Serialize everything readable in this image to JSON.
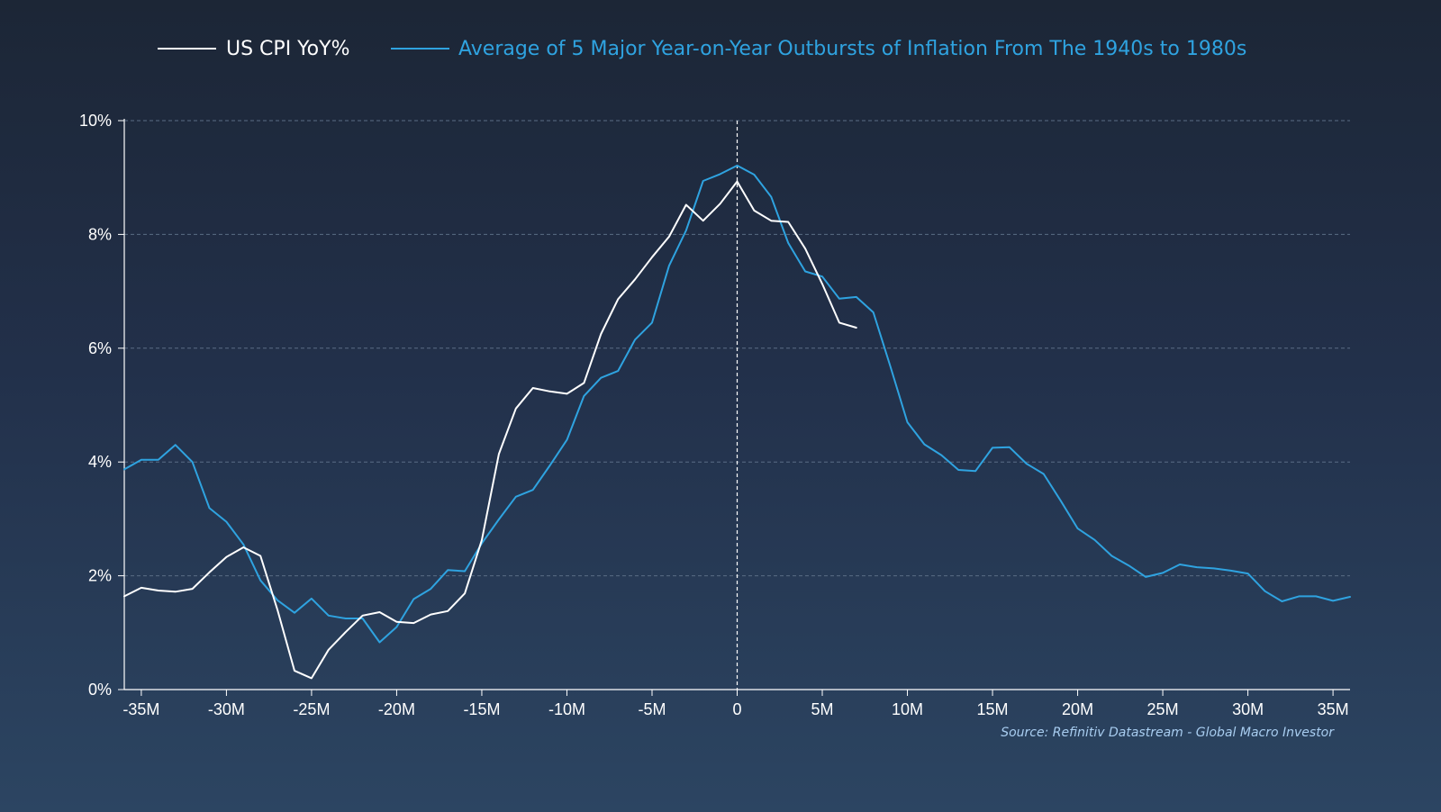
{
  "chart_data": {
    "type": "line",
    "title": "",
    "xlabel": "",
    "ylabel": "",
    "xlim": [
      -36,
      36
    ],
    "ylim": [
      0,
      10
    ],
    "x_ticks": [
      -35,
      -30,
      -25,
      -20,
      -15,
      -10,
      -5,
      0,
      5,
      10,
      15,
      20,
      25,
      30,
      35
    ],
    "x_tick_labels": [
      "-35M",
      "-30M",
      "-25M",
      "-20M",
      "-15M",
      "-10M",
      "-5M",
      "0",
      "5M",
      "10M",
      "15M",
      "20M",
      "25M",
      "30M",
      "35M"
    ],
    "y_ticks": [
      0,
      2,
      4,
      6,
      8,
      10
    ],
    "y_tick_labels": [
      "0%",
      "2%",
      "4%",
      "6%",
      "8%",
      "10%"
    ],
    "grid": true,
    "legend_position": "top",
    "vertical_reference_line": 0,
    "series": [
      {
        "name": "US CPI YoY%",
        "color": "#ffffff",
        "x": [
          -36,
          -35,
          -34,
          -33,
          -32,
          -31,
          -30,
          -29,
          -28,
          -27,
          -26,
          -25,
          -24,
          -23,
          -22,
          -21,
          -20,
          -19,
          -18,
          -17,
          -16,
          -15,
          -14,
          -13,
          -12,
          -11,
          -10,
          -9,
          -8,
          -7,
          -6,
          -5,
          -4,
          -3,
          -2,
          -1,
          0,
          1,
          2,
          3,
          4,
          5,
          6,
          7
        ],
        "values": [
          1.64,
          1.79,
          1.74,
          1.72,
          1.77,
          2.06,
          2.33,
          2.5,
          2.35,
          1.4,
          0.33,
          0.2,
          0.7,
          1.01,
          1.3,
          1.36,
          1.19,
          1.17,
          1.32,
          1.38,
          1.69,
          2.63,
          4.14,
          4.94,
          5.3,
          5.24,
          5.2,
          5.39,
          6.25,
          6.86,
          7.21,
          7.6,
          7.96,
          8.52,
          8.24,
          8.54,
          8.93,
          8.42,
          8.24,
          8.22,
          7.75,
          7.13,
          6.45,
          6.36
        ]
      },
      {
        "name": "Average of 5 Major Year-on-Year Outbursts of Inflation From The 1940s to 1980s",
        "color": "#2fa3e0",
        "x": [
          -36,
          -35,
          -34,
          -33,
          -32,
          -31,
          -30,
          -29,
          -28,
          -27,
          -26,
          -25,
          -24,
          -23,
          -22,
          -21,
          -20,
          -19,
          -18,
          -17,
          -16,
          -15,
          -14,
          -13,
          -12,
          -11,
          -10,
          -9,
          -8,
          -7,
          -6,
          -5,
          -4,
          -3,
          -2,
          -1,
          0,
          1,
          2,
          3,
          4,
          5,
          6,
          7,
          8,
          9,
          10,
          11,
          12,
          13,
          14,
          15,
          16,
          17,
          18,
          19,
          20,
          21,
          22,
          23,
          24,
          25,
          26,
          27,
          28,
          29,
          30,
          31,
          32,
          33,
          34,
          35,
          36
        ],
        "values": [
          3.87,
          4.04,
          4.04,
          4.3,
          4.0,
          3.19,
          2.95,
          2.55,
          1.92,
          1.57,
          1.35,
          1.6,
          1.3,
          1.25,
          1.25,
          0.83,
          1.1,
          1.59,
          1.77,
          2.1,
          2.08,
          2.57,
          2.99,
          3.39,
          3.51,
          3.94,
          4.39,
          5.16,
          5.48,
          5.6,
          6.15,
          6.45,
          7.45,
          8.07,
          8.94,
          9.06,
          9.21,
          9.05,
          8.66,
          7.85,
          7.35,
          7.26,
          6.87,
          6.9,
          6.63,
          5.68,
          4.7,
          4.31,
          4.12,
          3.86,
          3.84,
          4.25,
          4.26,
          3.97,
          3.79,
          3.32,
          2.83,
          2.63,
          2.35,
          2.18,
          1.98,
          2.05,
          2.2,
          2.15,
          2.13,
          2.09,
          2.04,
          1.73,
          1.55,
          1.64,
          1.64,
          1.56,
          1.63
        ]
      }
    ],
    "source": "Source: Refinitiv Datastream - Global Macro Investor"
  }
}
